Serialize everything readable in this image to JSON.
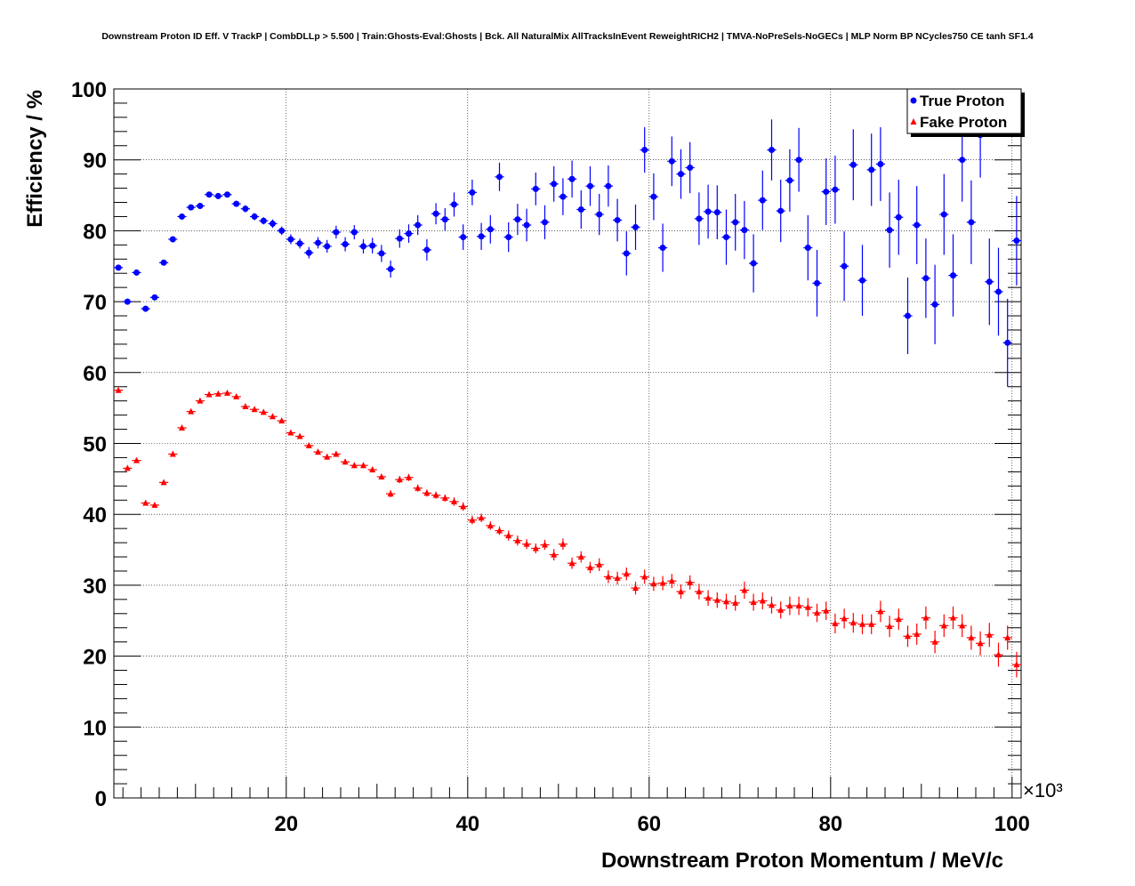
{
  "chart_data": {
    "type": "scatter",
    "title": "Downstream Proton ID Eff. V TrackP | CombDLLp > 5.500 | Train:Ghosts-Eval:Ghosts | Bck. All NaturalMix AllTracksInEvent ReweightRICH2 | TMVA-NoPreSels-NoGECs | MLP Norm BP NCycles750 CE tanh SF1.4",
    "xlabel": "Downstream Proton Momentum / MeV/c",
    "ylabel": "Efficiency / %",
    "x_multiplier_label": "×10³",
    "xlim": [
      1,
      101
    ],
    "ylim": [
      0,
      100
    ],
    "x_ticks": [
      20,
      40,
      60,
      80,
      100
    ],
    "y_ticks": [
      0,
      10,
      20,
      30,
      40,
      50,
      60,
      70,
      80,
      90,
      100
    ],
    "grid": true,
    "legend_position": "top-right",
    "x": [
      1.5,
      2.5,
      3.5,
      4.5,
      5.5,
      6.5,
      7.5,
      8.5,
      9.5,
      10.5,
      11.5,
      12.5,
      13.5,
      14.5,
      15.5,
      16.5,
      17.5,
      18.5,
      19.5,
      20.5,
      21.5,
      22.5,
      23.5,
      24.5,
      25.5,
      26.5,
      27.5,
      28.5,
      29.5,
      30.5,
      31.5,
      32.5,
      33.5,
      34.5,
      35.5,
      36.5,
      37.5,
      38.5,
      39.5,
      40.5,
      41.5,
      42.5,
      43.5,
      44.5,
      45.5,
      46.5,
      47.5,
      48.5,
      49.5,
      50.5,
      51.5,
      52.5,
      53.5,
      54.5,
      55.5,
      56.5,
      57.5,
      58.5,
      59.5,
      60.5,
      61.5,
      62.5,
      63.5,
      64.5,
      65.5,
      66.5,
      67.5,
      68.5,
      69.5,
      70.5,
      71.5,
      72.5,
      73.5,
      74.5,
      75.5,
      76.5,
      77.5,
      78.5,
      79.5,
      80.5,
      81.5,
      82.5,
      83.5,
      84.5,
      85.5,
      86.5,
      87.5,
      88.5,
      89.5,
      90.5,
      91.5,
      92.5,
      93.5,
      94.5,
      95.5,
      96.5,
      97.5,
      98.5,
      99.5,
      100.5
    ],
    "series": [
      {
        "name": "True Proton",
        "color": "#0000ff",
        "marker": "circle",
        "values": [
          74.8,
          70.0,
          74.1,
          69.0,
          70.6,
          75.5,
          78.8,
          82.0,
          83.3,
          83.5,
          85.1,
          84.9,
          85.1,
          83.8,
          83.1,
          82.0,
          81.4,
          81.0,
          80.0,
          78.8,
          78.2,
          76.9,
          78.3,
          77.8,
          79.8,
          78.1,
          79.8,
          77.8,
          77.9,
          76.8,
          74.6,
          78.9,
          79.6,
          80.8,
          77.3,
          82.4,
          81.6,
          83.7,
          79.1,
          85.4,
          79.2,
          80.2,
          87.6,
          79.1,
          81.6,
          80.8,
          85.9,
          81.2,
          86.6,
          84.8,
          87.3,
          83.0,
          86.3,
          82.3,
          86.3,
          81.5,
          76.8,
          80.5,
          91.4,
          84.8,
          77.6,
          89.8,
          88.0,
          88.9,
          81.7,
          82.7,
          82.6,
          79.1,
          81.2,
          80.1,
          75.4,
          84.3,
          91.4,
          82.8,
          87.1,
          90.0,
          77.6,
          72.6,
          85.5,
          85.8,
          75.0,
          89.3,
          73.0,
          88.6,
          89.4,
          80.1,
          81.9,
          68.0,
          80.8,
          73.3,
          69.6,
          82.3,
          73.7,
          90.0,
          81.2,
          93.5,
          72.8,
          71.4,
          64.2,
          78.6
        ],
        "errors": [
          0.4,
          0.4,
          0.4,
          0.4,
          0.4,
          0.4,
          0.4,
          0.4,
          0.4,
          0.4,
          0.4,
          0.4,
          0.4,
          0.4,
          0.5,
          0.5,
          0.5,
          0.6,
          0.6,
          0.7,
          0.7,
          0.8,
          0.8,
          0.9,
          0.9,
          1.0,
          1.0,
          1.0,
          1.1,
          1.2,
          1.2,
          1.3,
          1.3,
          1.4,
          1.5,
          1.5,
          1.6,
          1.7,
          1.8,
          1.8,
          1.9,
          2.0,
          2.0,
          2.1,
          2.2,
          2.3,
          2.3,
          2.4,
          2.5,
          2.6,
          2.6,
          2.7,
          2.8,
          2.9,
          2.9,
          3.0,
          3.1,
          3.2,
          3.2,
          3.3,
          3.4,
          3.5,
          3.5,
          3.6,
          3.7,
          3.8,
          3.8,
          3.9,
          4.0,
          4.1,
          4.1,
          4.2,
          4.3,
          4.4,
          4.4,
          4.5,
          4.6,
          4.7,
          4.7,
          4.8,
          4.9,
          5.0,
          5.0,
          5.1,
          5.2,
          5.3,
          5.3,
          5.4,
          5.5,
          5.6,
          5.6,
          5.7,
          5.8,
          5.9,
          5.9,
          6.0,
          6.1,
          6.2,
          6.2,
          6.3
        ]
      },
      {
        "name": "Fake Proton",
        "color": "#ff0000",
        "marker": "triangle",
        "values": [
          57.5,
          46.5,
          47.6,
          41.6,
          41.3,
          44.5,
          48.5,
          52.2,
          54.5,
          56.0,
          56.9,
          57.0,
          57.1,
          56.6,
          55.2,
          54.8,
          54.4,
          53.8,
          53.2,
          51.5,
          51.0,
          49.7,
          48.8,
          48.1,
          48.5,
          47.4,
          46.9,
          46.9,
          46.3,
          45.3,
          42.9,
          44.9,
          45.2,
          43.7,
          43.0,
          42.7,
          42.3,
          41.8,
          41.1,
          39.2,
          39.5,
          38.4,
          37.7,
          37.0,
          36.3,
          35.8,
          35.2,
          35.7,
          34.3,
          35.8,
          33.1,
          34.0,
          32.5,
          32.9,
          31.2,
          31.0,
          31.6,
          29.6,
          31.2,
          30.2,
          30.3,
          30.6,
          29.1,
          30.4,
          29.1,
          28.2,
          27.9,
          27.7,
          27.5,
          29.3,
          27.6,
          27.8,
          27.2,
          26.5,
          27.1,
          27.1,
          26.9,
          26.1,
          26.4,
          24.6,
          25.3,
          24.7,
          24.5,
          24.5,
          26.3,
          24.2,
          25.2,
          22.8,
          23.1,
          25.4,
          22.0,
          24.3,
          25.4,
          24.3,
          22.6,
          21.8,
          23.0,
          20.2,
          22.6,
          18.8
        ],
        "errors": [
          0.3,
          0.3,
          0.3,
          0.3,
          0.3,
          0.3,
          0.3,
          0.3,
          0.3,
          0.3,
          0.3,
          0.3,
          0.3,
          0.3,
          0.3,
          0.3,
          0.3,
          0.3,
          0.3,
          0.3,
          0.3,
          0.3,
          0.4,
          0.4,
          0.4,
          0.4,
          0.4,
          0.4,
          0.4,
          0.4,
          0.5,
          0.5,
          0.5,
          0.5,
          0.5,
          0.5,
          0.5,
          0.6,
          0.6,
          0.6,
          0.6,
          0.6,
          0.6,
          0.7,
          0.7,
          0.7,
          0.7,
          0.7,
          0.8,
          0.8,
          0.8,
          0.8,
          0.8,
          0.9,
          0.9,
          0.9,
          0.9,
          0.9,
          1.0,
          1.0,
          1.0,
          1.0,
          1.0,
          1.0,
          1.1,
          1.1,
          1.1,
          1.1,
          1.1,
          1.2,
          1.2,
          1.2,
          1.2,
          1.2,
          1.3,
          1.3,
          1.3,
          1.3,
          1.3,
          1.4,
          1.4,
          1.4,
          1.4,
          1.4,
          1.5,
          1.5,
          1.5,
          1.5,
          1.5,
          1.6,
          1.6,
          1.6,
          1.6,
          1.6,
          1.7,
          1.7,
          1.7,
          1.7,
          1.7,
          1.8
        ]
      }
    ]
  }
}
